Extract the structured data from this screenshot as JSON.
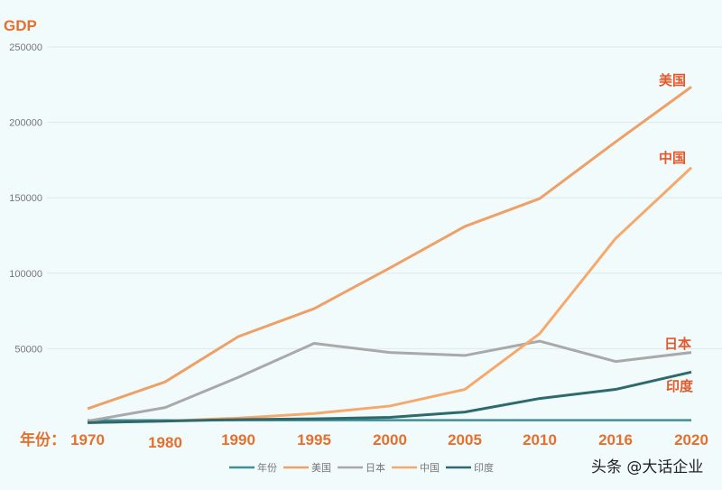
{
  "chart_data": {
    "type": "line",
    "title": "",
    "ylabel": "GDP",
    "xlabel_prefix": "年份：",
    "x": [
      "1970",
      "1980",
      "1990",
      "1995",
      "2000",
      "2005",
      "2010",
      "2016",
      "2020"
    ],
    "ylim": [
      0,
      250000
    ],
    "yticks": [
      "250000",
      "200000",
      "150000",
      "100000",
      "50000"
    ],
    "ytick_values": [
      250000,
      200000,
      150000,
      100000,
      50000
    ],
    "grid": true,
    "legend_position": "bottom",
    "series": [
      {
        "name": "年份",
        "color": "#3f8f96",
        "values": [
          1970,
          1980,
          1990,
          1995,
          2000,
          2005,
          2010,
          2016,
          2020
        ],
        "end_label": ""
      },
      {
        "name": "美国",
        "color": "#eea066",
        "values": [
          10200,
          28000,
          58000,
          76500,
          103500,
          131000,
          149500,
          187000,
          223500
        ],
        "end_label": "美国"
      },
      {
        "name": "日本",
        "color": "#a9a9a9",
        "values": [
          2000,
          11000,
          31000,
          53500,
          47500,
          45500,
          55000,
          41500,
          47500
        ],
        "end_label": "日本"
      },
      {
        "name": "中国",
        "color": "#f6a96c",
        "values": [
          1000,
          2000,
          4000,
          7000,
          12000,
          23000,
          60000,
          123000,
          170000
        ],
        "end_label": "中国"
      },
      {
        "name": "印度",
        "color": "#2c6a6e",
        "values": [
          1000,
          2000,
          3000,
          3500,
          4500,
          8000,
          17000,
          23000,
          34500
        ],
        "end_label": "印度"
      }
    ]
  },
  "watermark": "头条 @大话企业"
}
